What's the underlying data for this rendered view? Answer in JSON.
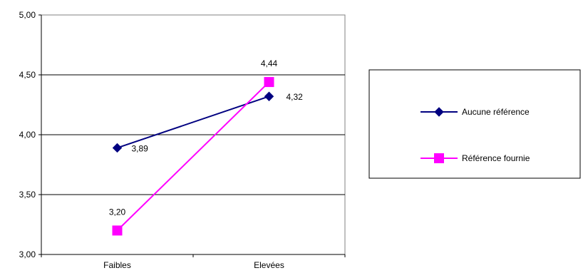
{
  "chart_data": {
    "type": "line",
    "title": "",
    "xlabel": "",
    "ylabel": "",
    "categories": [
      "Faibles",
      "Elevées"
    ],
    "ylim": [
      3.0,
      5.0
    ],
    "yticks": [
      3.0,
      3.5,
      4.0,
      4.5,
      5.0
    ],
    "ytick_labels": [
      "3,00",
      "3,50",
      "4,00",
      "4,50",
      "5,00"
    ],
    "grid": true,
    "legend_position": "right",
    "series": [
      {
        "name": "Aucune référence",
        "values": [
          3.89,
          4.32
        ],
        "value_labels": [
          "3,89",
          "4,32"
        ],
        "color": "#000080",
        "marker": "diamond"
      },
      {
        "name": "Référence fournie",
        "values": [
          3.2,
          4.44
        ],
        "value_labels": [
          "3,20",
          "4,44"
        ],
        "color": "#ff00ff",
        "marker": "square"
      }
    ]
  }
}
